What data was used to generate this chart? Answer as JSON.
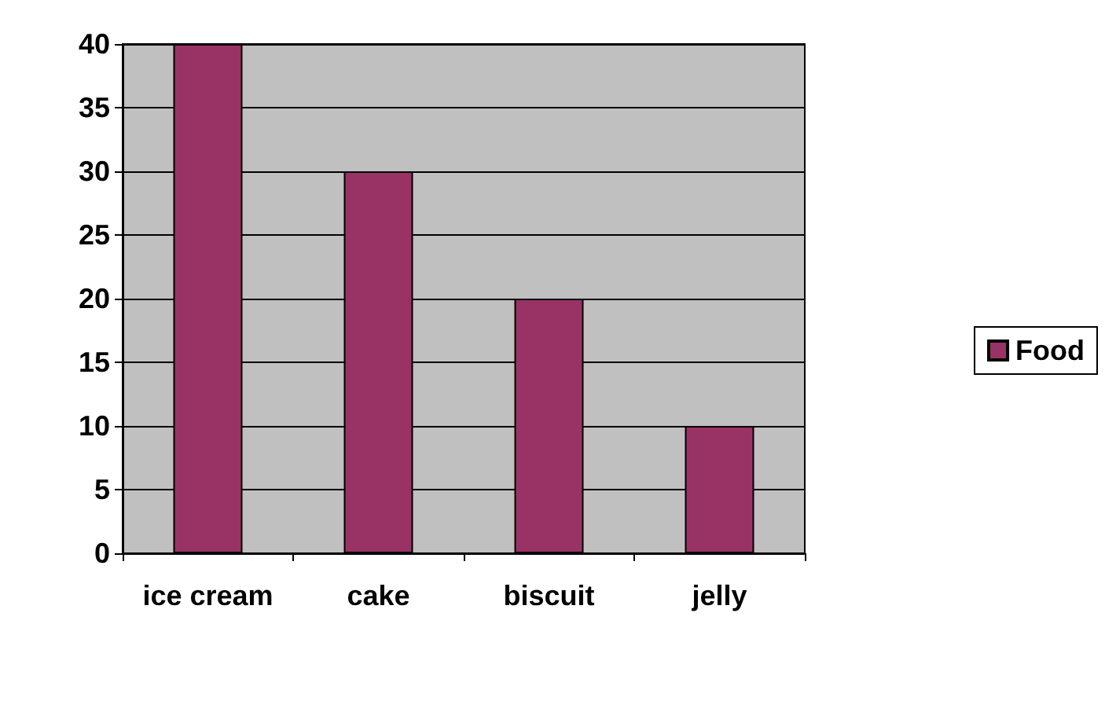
{
  "chart_data": {
    "type": "bar",
    "categories": [
      "ice cream",
      "cake",
      "biscuit",
      "jelly"
    ],
    "series": [
      {
        "name": "Food",
        "color": "#993366",
        "values": [
          40,
          30,
          20,
          10
        ]
      }
    ],
    "ylim": [
      0,
      40
    ],
    "yticks": [
      0,
      5,
      10,
      15,
      20,
      25,
      30,
      35,
      40
    ],
    "grid": "y",
    "legend": "right"
  }
}
